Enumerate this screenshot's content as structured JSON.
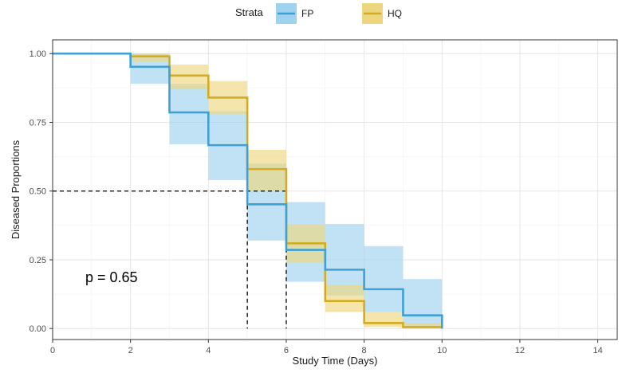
{
  "chart_data": {
    "type": "line",
    "subtype": "kaplan-meier step curve with confidence bands",
    "xlabel": "Study Time (Days)",
    "ylabel": "Diseased Proportions",
    "xlim": [
      0,
      14.5
    ],
    "ylim": [
      -0.04,
      1.05
    ],
    "x_ticks": [
      0,
      2,
      4,
      6,
      8,
      10,
      12,
      14
    ],
    "x_tick_labels": [
      "0",
      "2",
      "4",
      "6",
      "8",
      "10",
      "12",
      "14"
    ],
    "y_ticks": [
      0,
      0.25,
      0.5,
      0.75,
      1.0
    ],
    "y_tick_labels": [
      "0.00",
      "0.25",
      "0.50",
      "0.75",
      "1.00"
    ],
    "grid": true,
    "legend": {
      "title": "Strata",
      "position": "top"
    },
    "annotation": "p = 0.65",
    "median_line": {
      "y": 0.5,
      "x_values": [
        5,
        6
      ]
    },
    "series": [
      {
        "name": "FP",
        "color": "#3fa0d6",
        "band_color": "#9fd2ef",
        "x": [
          0,
          2,
          3,
          4,
          5,
          6,
          7,
          8,
          9,
          10
        ],
        "y": [
          1.0,
          0.952,
          0.786,
          0.667,
          0.452,
          0.286,
          0.214,
          0.143,
          0.048,
          0.0
        ],
        "lower": [
          1.0,
          0.89,
          0.67,
          0.54,
          0.32,
          0.17,
          0.12,
          0.06,
          0.005,
          0.0
        ],
        "upper": [
          1.0,
          1.0,
          0.89,
          0.79,
          0.6,
          0.46,
          0.38,
          0.3,
          0.18,
          0.0
        ]
      },
      {
        "name": "HQ",
        "color": "#d4ac24",
        "band_color": "#ecd77e",
        "x": [
          0,
          2,
          3,
          4,
          5,
          6,
          7,
          8,
          9,
          10
        ],
        "y": [
          1.0,
          0.99,
          0.92,
          0.84,
          0.58,
          0.31,
          0.1,
          0.02,
          0.005,
          0.005
        ],
        "lower": [
          1.0,
          0.97,
          0.87,
          0.78,
          0.5,
          0.24,
          0.06,
          0.005,
          0.0,
          0.0
        ],
        "upper": [
          1.0,
          1.0,
          0.96,
          0.9,
          0.65,
          0.38,
          0.16,
          0.06,
          0.02,
          0.02
        ]
      }
    ]
  }
}
